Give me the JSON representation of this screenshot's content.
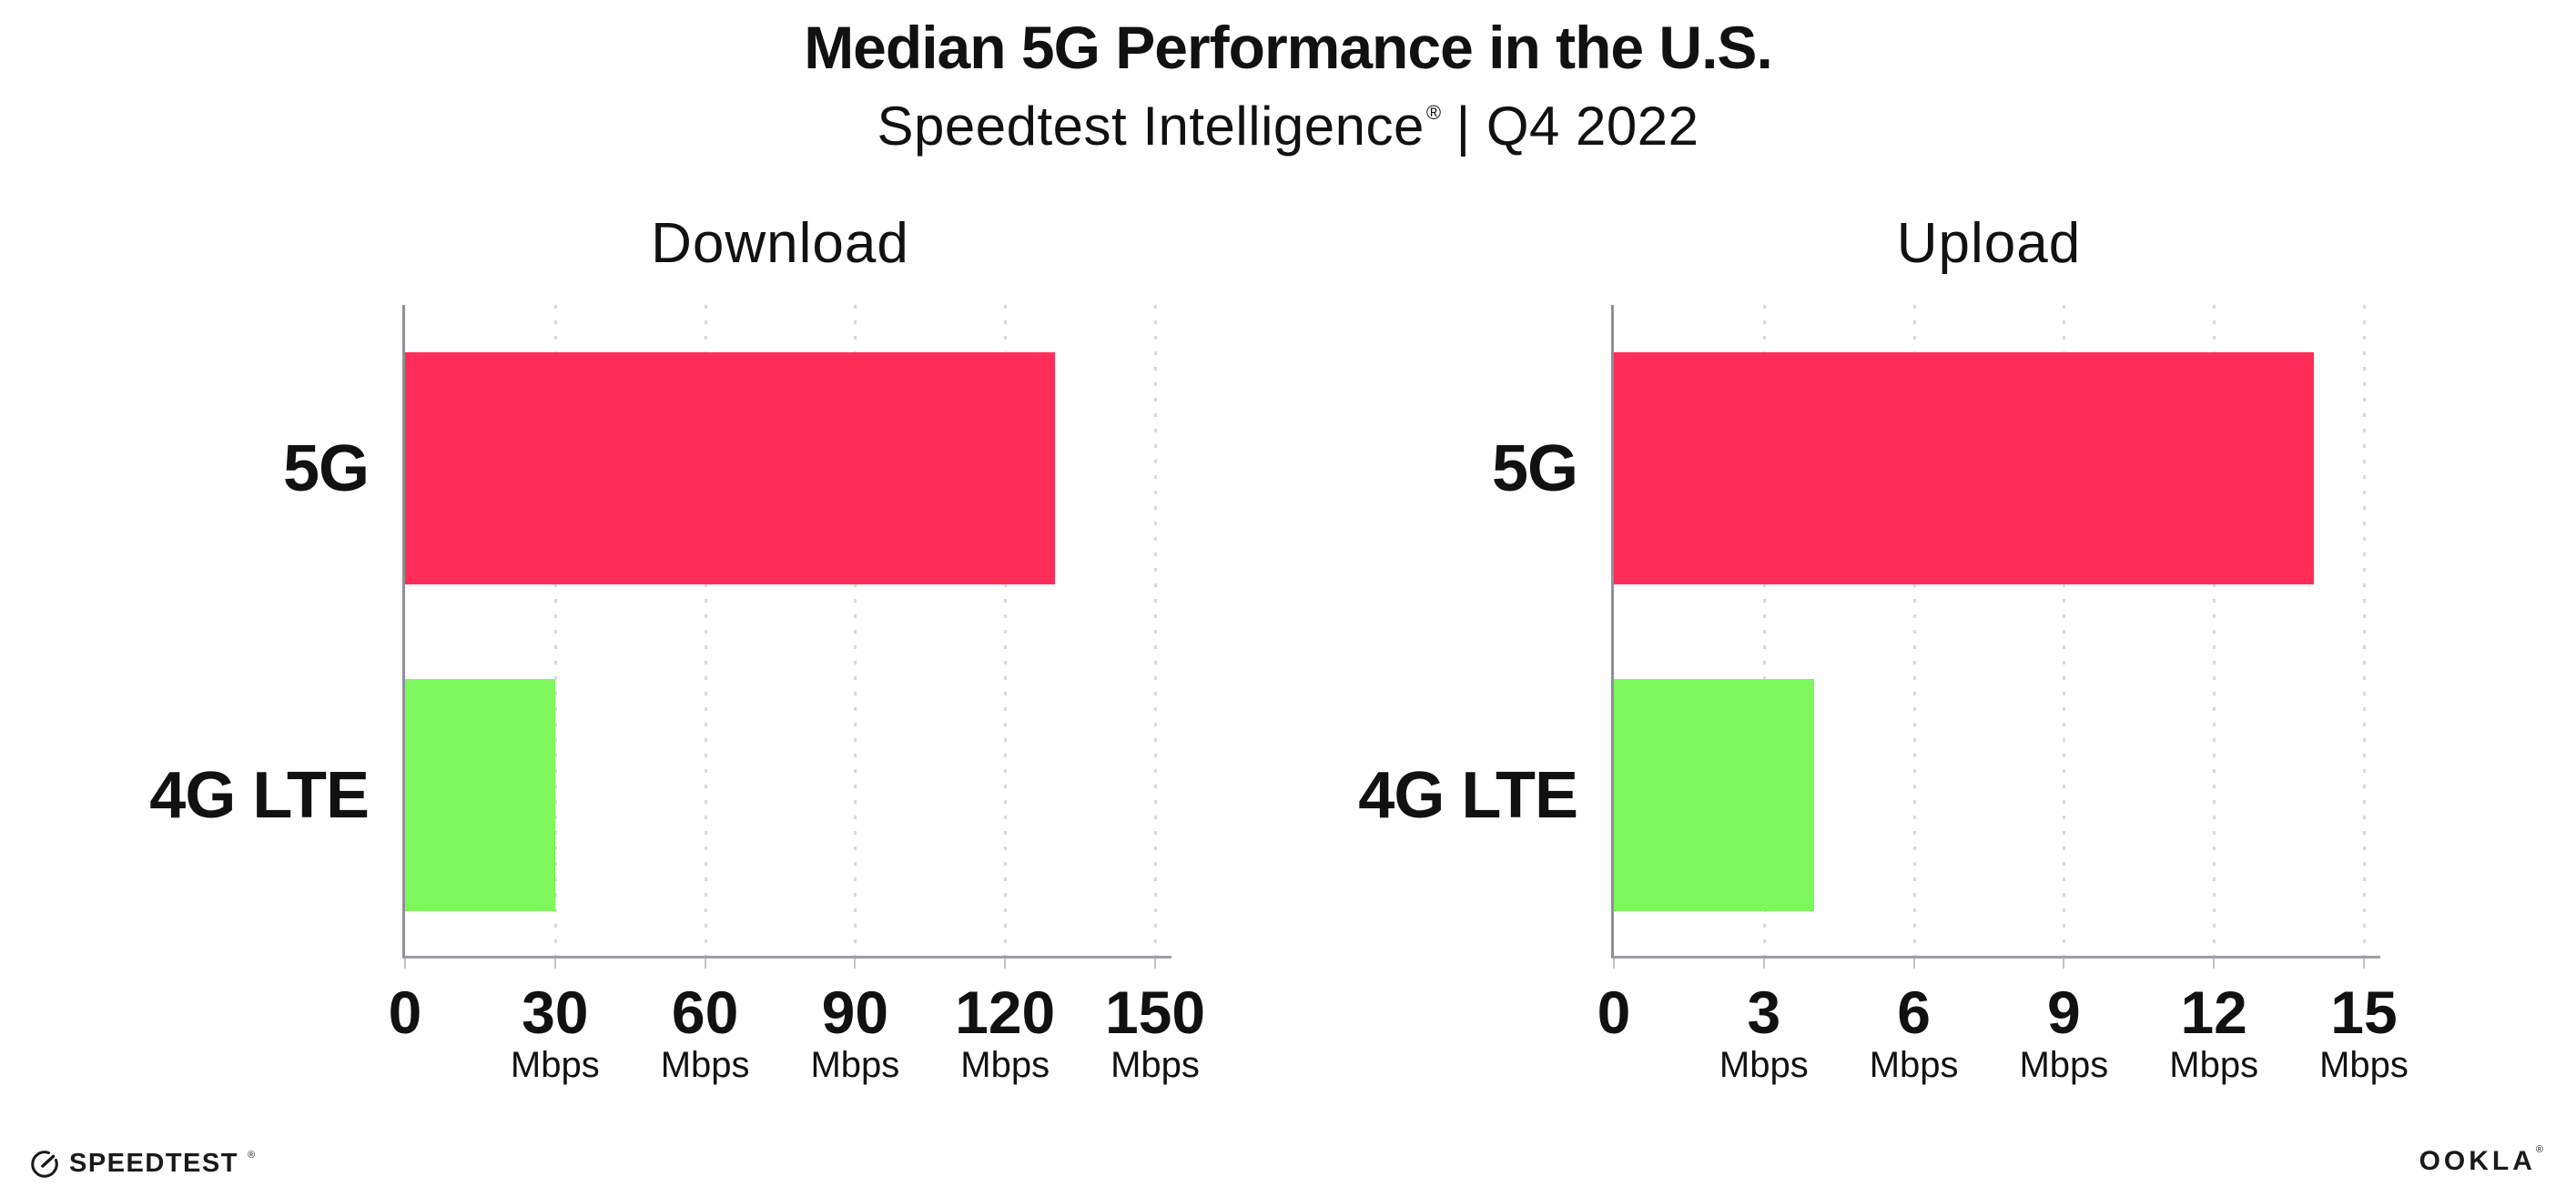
{
  "header": {
    "title": "Median 5G Performance in the U.S.",
    "subtitle_brand": "Speedtest Intelligence",
    "subtitle_reg": "®",
    "subtitle_rest": "| Q4 2022"
  },
  "chart_data": [
    {
      "type": "bar",
      "orientation": "horizontal",
      "title": "Download",
      "categories": [
        "5G",
        "4G LTE"
      ],
      "values": [
        130,
        30
      ],
      "unit": "Mbps",
      "xticks": [
        0,
        30,
        60,
        90,
        120,
        150
      ],
      "xlim": [
        0,
        150
      ],
      "grid": "dotted-vertical",
      "legend": "none",
      "bar_colors": [
        "#FF2D58",
        "#7EF85C"
      ]
    },
    {
      "type": "bar",
      "orientation": "horizontal",
      "title": "Upload",
      "categories": [
        "5G",
        "4G LTE"
      ],
      "values": [
        14,
        4
      ],
      "unit": "Mbps",
      "xticks": [
        0,
        3,
        6,
        9,
        12,
        15
      ],
      "xlim": [
        0,
        15
      ],
      "grid": "dotted-vertical",
      "legend": "none",
      "bar_colors": [
        "#FF2D58",
        "#7EF85C"
      ]
    }
  ],
  "footer": {
    "speedtest": "SPEEDTEST",
    "speedtest_mark": "®",
    "ookla": "OOKLA",
    "ookla_mark": "®"
  },
  "colors": {
    "bar_5g": "#FF2D58",
    "bar_4g_lte": "#7EF85C",
    "axis_line": "#9d9da5",
    "y_axis_line": "#8f8f97",
    "gridline_dots": "#d8d8e2",
    "text": "#111111",
    "background": "#ffffff"
  }
}
